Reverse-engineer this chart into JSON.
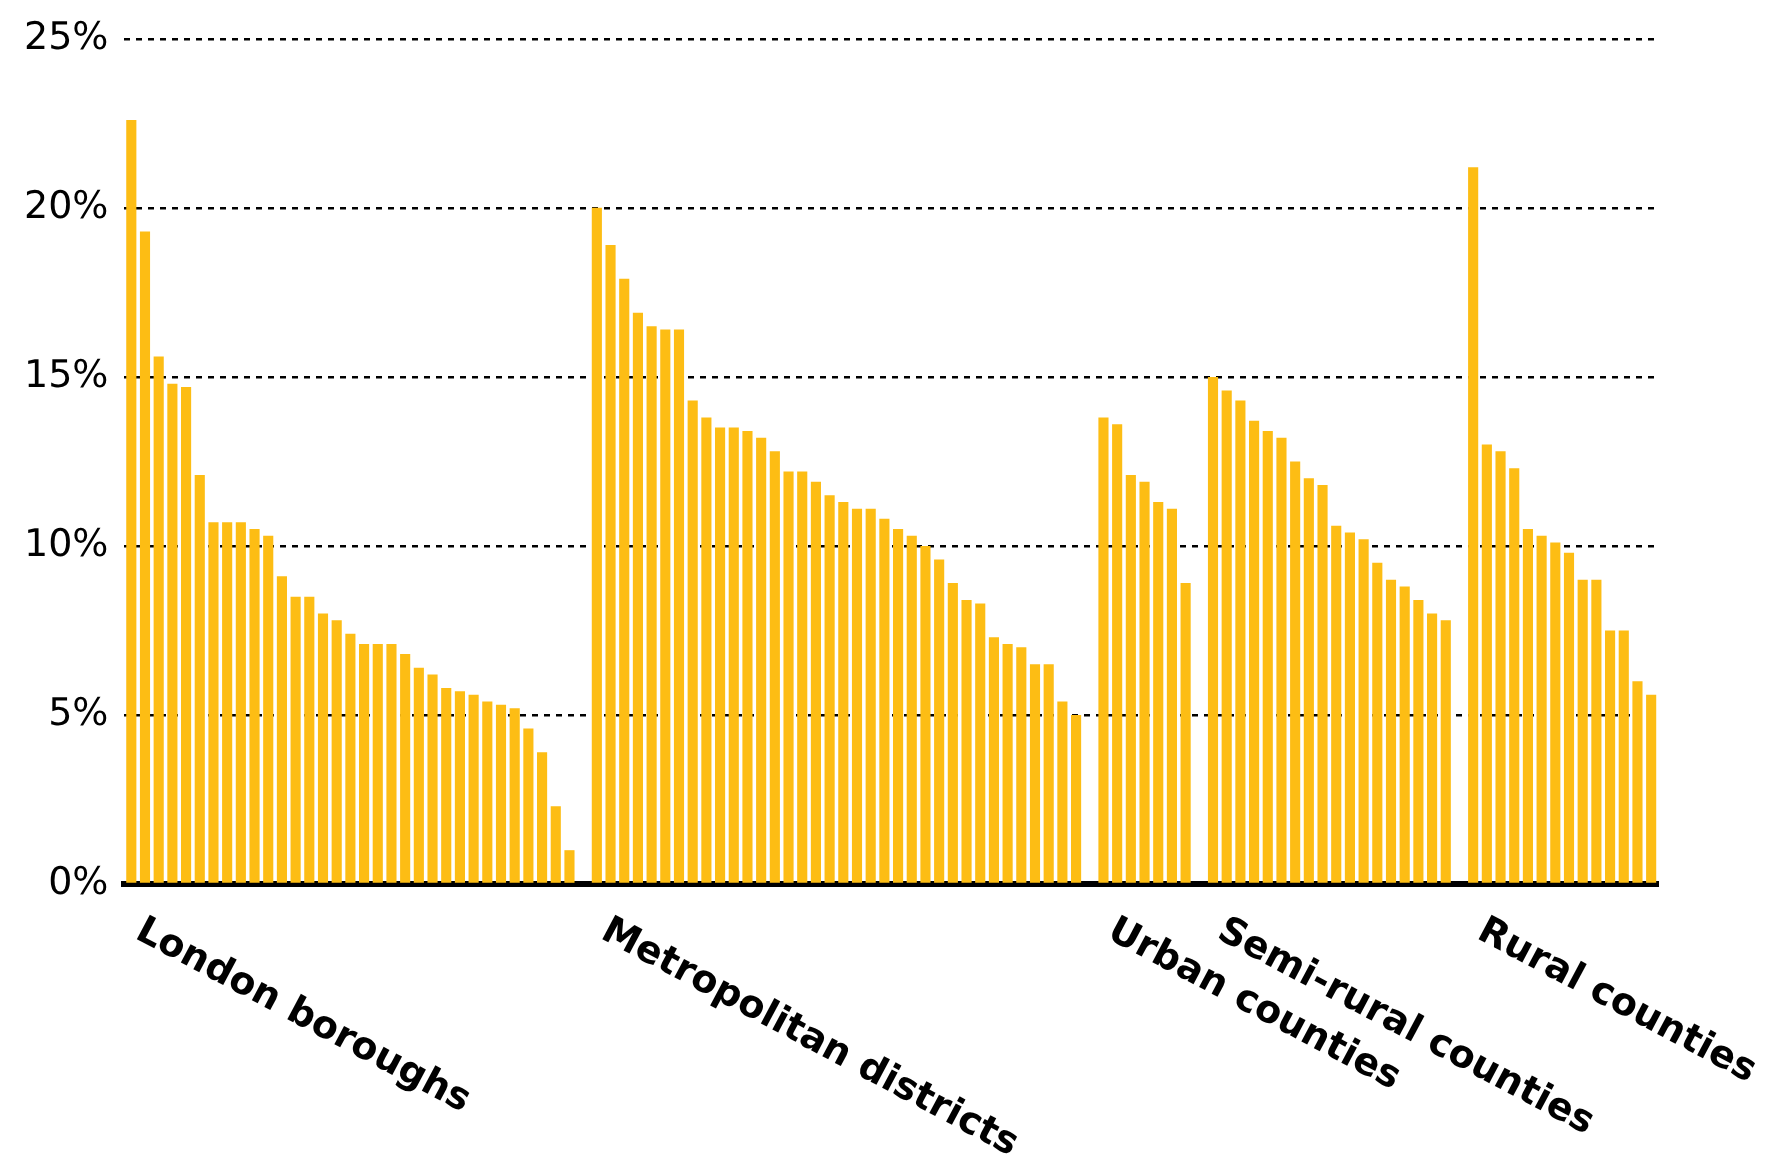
{
  "chart_data": {
    "type": "bar",
    "categories": [
      "London boroughs",
      null,
      null,
      null,
      null,
      null,
      null,
      null,
      null,
      null,
      null,
      null,
      null,
      null,
      null,
      null,
      null,
      null,
      null,
      null,
      null,
      null,
      null,
      null,
      null,
      null,
      null,
      null,
      null,
      null,
      null,
      null,
      null,
      null,
      "Metropolitan districts",
      null,
      null,
      null,
      null,
      null,
      null,
      null,
      null,
      null,
      null,
      null,
      null,
      null,
      null,
      null,
      null,
      null,
      null,
      null,
      null,
      null,
      null,
      null,
      null,
      null,
      null,
      null,
      null,
      null,
      null,
      null,
      null,
      null,
      null,
      null,
      null,
      "Urban counties",
      null,
      null,
      null,
      null,
      null,
      null,
      null,
      "Semi-rural counties",
      null,
      null,
      null,
      null,
      null,
      null,
      null,
      null,
      null,
      null,
      null,
      null,
      null,
      null,
      null,
      null,
      null,
      null,
      "Rural counties",
      null,
      null,
      null,
      null,
      null,
      null,
      null,
      null,
      null,
      null,
      null,
      null,
      null
    ],
    "values": [
      22.6,
      19.3,
      15.6,
      14.8,
      14.7,
      12.1,
      10.7,
      10.7,
      10.7,
      10.5,
      10.3,
      9.1,
      8.5,
      8.5,
      8.0,
      7.8,
      7.4,
      7.1,
      7.1,
      7.1,
      6.8,
      6.4,
      6.2,
      5.8,
      5.7,
      5.6,
      5.4,
      5.3,
      5.2,
      4.6,
      3.9,
      2.3,
      1.0,
      null,
      20.0,
      18.9,
      17.9,
      16.9,
      16.5,
      16.4,
      16.4,
      14.3,
      13.8,
      13.5,
      13.5,
      13.4,
      13.2,
      12.8,
      12.2,
      12.2,
      11.9,
      11.5,
      11.3,
      11.1,
      11.1,
      10.8,
      10.5,
      10.3,
      10.0,
      9.6,
      8.9,
      8.4,
      8.3,
      7.3,
      7.1,
      7.0,
      6.5,
      6.5,
      5.4,
      5.0,
      null,
      13.8,
      13.6,
      12.1,
      11.9,
      11.3,
      11.1,
      8.9,
      null,
      15.0,
      14.6,
      14.3,
      13.7,
      13.4,
      13.2,
      12.5,
      12.0,
      11.8,
      10.6,
      10.4,
      10.2,
      9.5,
      9.0,
      8.8,
      8.4,
      8.0,
      7.8,
      null,
      21.2,
      13.0,
      12.8,
      12.3,
      10.5,
      10.3,
      10.1,
      9.8,
      9.0,
      9.0,
      7.5,
      7.5,
      6.0,
      5.6
    ],
    "color": "#fdbd14",
    "ylim": [
      0,
      25
    ],
    "yticks": [
      {
        "value": 0,
        "label": "0%"
      },
      {
        "value": 5,
        "label": "5%"
      },
      {
        "value": 10,
        "label": "10%"
      },
      {
        "value": 15,
        "label": "15%"
      },
      {
        "value": 20,
        "label": "20%"
      },
      {
        "value": 25,
        "label": "25%"
      }
    ],
    "grid": "y"
  }
}
